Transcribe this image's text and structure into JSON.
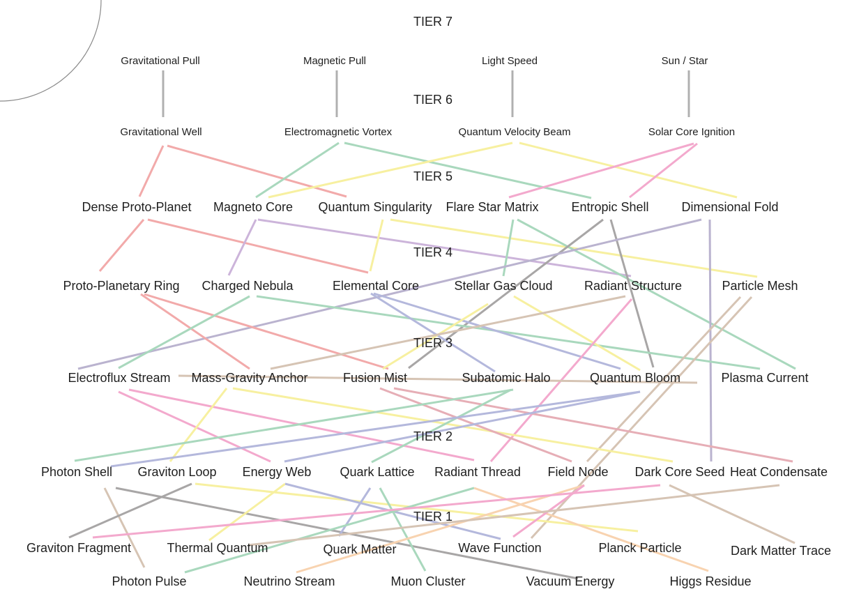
{
  "colors": {
    "gray": "#b0b0b0",
    "red": "#f2aaaa",
    "green": "#a9d8bd",
    "yellow": "#f7f0a0",
    "pink": "#f3a9cd",
    "purple": "#ccb4da",
    "blue": "#b4b8dc",
    "tan": "#d6c4b4",
    "darkgray": "#a8a6a6",
    "orange": "#f8d3b0",
    "rose": "#e6aeb6",
    "lavender": "#bab3cf"
  },
  "tiers": [
    {
      "id": "tier7",
      "label": "TIER 7"
    },
    {
      "id": "tier6",
      "label": "TIER 6"
    },
    {
      "id": "tier5",
      "label": "TIER 5"
    },
    {
      "id": "tier4",
      "label": "TIER 4"
    },
    {
      "id": "tier3",
      "label": "TIER 3"
    },
    {
      "id": "tier2",
      "label": "TIER 2"
    },
    {
      "id": "tier1",
      "label": "TIER 1"
    }
  ],
  "nodes": [
    {
      "id": "grav-pull",
      "label": "Gravitational Pull",
      "size": "small"
    },
    {
      "id": "mag-pull",
      "label": "Magnetic Pull",
      "size": "small"
    },
    {
      "id": "light-speed",
      "label": "Light Speed",
      "size": "small"
    },
    {
      "id": "sun-star",
      "label": "Sun / Star",
      "size": "small"
    },
    {
      "id": "grav-well",
      "label": "Gravitational Well",
      "size": "small"
    },
    {
      "id": "em-vortex",
      "label": "Electromagnetic Vortex",
      "size": "small"
    },
    {
      "id": "qv-beam",
      "label": "Quantum Velocity Beam",
      "size": "small"
    },
    {
      "id": "solar-core",
      "label": "Solar Core Ignition",
      "size": "small"
    },
    {
      "id": "dense-pp",
      "label": "Dense Proto-Planet",
      "size": "big"
    },
    {
      "id": "magneto-core",
      "label": "Magneto Core",
      "size": "big"
    },
    {
      "id": "q-sing",
      "label": "Quantum Singularity",
      "size": "big"
    },
    {
      "id": "flare-star",
      "label": "Flare Star Matrix",
      "size": "big"
    },
    {
      "id": "entropic",
      "label": "Entropic Shell",
      "size": "big"
    },
    {
      "id": "dim-fold",
      "label": "Dimensional Fold",
      "size": "big"
    },
    {
      "id": "pp-ring",
      "label": "Proto-Planetary Ring",
      "size": "big"
    },
    {
      "id": "charged-neb",
      "label": "Charged Nebula",
      "size": "big"
    },
    {
      "id": "elem-core",
      "label": "Elemental Core",
      "size": "big"
    },
    {
      "id": "stellar-gas",
      "label": "Stellar Gas Cloud",
      "size": "big"
    },
    {
      "id": "radiant-struct",
      "label": "Radiant Structure",
      "size": "big"
    },
    {
      "id": "particle-mesh",
      "label": "Particle Mesh",
      "size": "big"
    },
    {
      "id": "electroflux",
      "label": "Electroflux Stream",
      "size": "big"
    },
    {
      "id": "mass-grav",
      "label": "Mass-Gravity Anchor",
      "size": "big"
    },
    {
      "id": "fusion-mist",
      "label": "Fusion Mist",
      "size": "big"
    },
    {
      "id": "subatomic",
      "label": "Subatomic Halo",
      "size": "big"
    },
    {
      "id": "q-bloom",
      "label": "Quantum Bloom",
      "size": "big"
    },
    {
      "id": "plasma",
      "label": "Plasma Current",
      "size": "big"
    },
    {
      "id": "photon-shell",
      "label": "Photon Shell",
      "size": "big"
    },
    {
      "id": "graviton-loop",
      "label": "Graviton Loop",
      "size": "big"
    },
    {
      "id": "energy-web",
      "label": "Energy Web",
      "size": "big"
    },
    {
      "id": "quark-lattice",
      "label": "Quark Lattice",
      "size": "big"
    },
    {
      "id": "radiant-thread",
      "label": "Radiant Thread",
      "size": "big"
    },
    {
      "id": "field-node",
      "label": "Field Node",
      "size": "big"
    },
    {
      "id": "dark-core",
      "label": "Dark Core Seed",
      "size": "big"
    },
    {
      "id": "heat-cond",
      "label": "Heat Condensate",
      "size": "big"
    },
    {
      "id": "graviton-frag",
      "label": "Graviton Fragment",
      "size": "big"
    },
    {
      "id": "thermal-q",
      "label": "Thermal Quantum",
      "size": "big"
    },
    {
      "id": "quark-matter",
      "label": "Quark Matter",
      "size": "big"
    },
    {
      "id": "wave-fn",
      "label": "Wave Function",
      "size": "big"
    },
    {
      "id": "planck",
      "label": "Planck Particle",
      "size": "big"
    },
    {
      "id": "dark-trace",
      "label": "Dark Matter Trace",
      "size": "big"
    },
    {
      "id": "photon-pulse",
      "label": "Photon Pulse",
      "size": "big"
    },
    {
      "id": "neutrino",
      "label": "Neutrino Stream",
      "size": "big"
    },
    {
      "id": "muon",
      "label": "Muon Cluster",
      "size": "big"
    },
    {
      "id": "vacuum",
      "label": "Vacuum Energy",
      "size": "big"
    },
    {
      "id": "higgs",
      "label": "Higgs Residue",
      "size": "big"
    }
  ],
  "edges": [
    {
      "from": "grav-pull",
      "to": "grav-well",
      "color": "gray"
    },
    {
      "from": "mag-pull",
      "to": "em-vortex",
      "color": "gray"
    },
    {
      "from": "light-speed",
      "to": "qv-beam",
      "color": "gray"
    },
    {
      "from": "sun-star",
      "to": "solar-core",
      "color": "gray"
    },
    {
      "from": "grav-well",
      "to": "dense-pp",
      "color": "red"
    },
    {
      "from": "grav-well",
      "to": "q-sing",
      "color": "red"
    },
    {
      "from": "em-vortex",
      "to": "magneto-core",
      "color": "green"
    },
    {
      "from": "em-vortex",
      "to": "entropic",
      "color": "green"
    },
    {
      "from": "qv-beam",
      "to": "magneto-core",
      "color": "yellow"
    },
    {
      "from": "qv-beam",
      "to": "dim-fold",
      "color": "yellow"
    },
    {
      "from": "solar-core",
      "to": "flare-star",
      "color": "pink"
    },
    {
      "from": "solar-core",
      "to": "entropic",
      "color": "pink"
    },
    {
      "from": "dense-pp",
      "to": "pp-ring",
      "color": "red"
    },
    {
      "from": "dense-pp",
      "to": "elem-core",
      "color": "red"
    },
    {
      "from": "magneto-core",
      "to": "charged-neb",
      "color": "purple"
    },
    {
      "from": "magneto-core",
      "to": "radiant-struct",
      "color": "purple"
    },
    {
      "from": "q-sing",
      "to": "elem-core",
      "color": "yellow"
    },
    {
      "from": "q-sing",
      "to": "particle-mesh",
      "color": "yellow"
    },
    {
      "from": "flare-star",
      "to": "stellar-gas",
      "color": "green"
    },
    {
      "from": "flare-star",
      "to": "plasma",
      "color": "green"
    },
    {
      "from": "entropic",
      "to": "fusion-mist",
      "color": "darkgray"
    },
    {
      "from": "entropic",
      "to": "q-bloom",
      "color": "darkgray"
    },
    {
      "from": "dim-fold",
      "to": "electroflux",
      "color": "lavender"
    },
    {
      "from": "dim-fold",
      "to": "dark-core",
      "color": "lavender"
    },
    {
      "from": "pp-ring",
      "to": "mass-grav",
      "color": "red"
    },
    {
      "from": "pp-ring",
      "to": "fusion-mist",
      "color": "red"
    },
    {
      "from": "charged-neb",
      "to": "electroflux",
      "color": "green"
    },
    {
      "from": "charged-neb",
      "to": "plasma",
      "color": "green"
    },
    {
      "from": "elem-core",
      "to": "subatomic",
      "color": "blue"
    },
    {
      "from": "elem-core",
      "to": "q-bloom",
      "color": "blue"
    },
    {
      "from": "stellar-gas",
      "to": "fusion-mist",
      "color": "yellow"
    },
    {
      "from": "stellar-gas",
      "to": "q-bloom",
      "color": "yellow"
    },
    {
      "from": "radiant-struct",
      "to": "mass-grav",
      "color": "tan"
    },
    {
      "from": "radiant-struct",
      "to": "radiant-thread",
      "color": "pink"
    },
    {
      "from": "particle-mesh",
      "to": "field-node",
      "color": "tan"
    },
    {
      "from": "particle-mesh",
      "to": "wave-fn",
      "color": "tan"
    },
    {
      "from": "electroflux",
      "to": "plasma",
      "color": "tan"
    },
    {
      "from": "electroflux",
      "to": "energy-web",
      "color": "pink"
    },
    {
      "from": "mass-grav",
      "to": "radiant-thread",
      "color": "pink"
    },
    {
      "from": "mass-grav",
      "to": "graviton-loop",
      "color": "yellow"
    },
    {
      "from": "mass-grav",
      "to": "dark-core",
      "color": "yellow"
    },
    {
      "from": "fusion-mist",
      "to": "field-node",
      "color": "rose"
    },
    {
      "from": "fusion-mist",
      "to": "heat-cond",
      "color": "rose"
    },
    {
      "from": "subatomic",
      "to": "photon-shell",
      "color": "green"
    },
    {
      "from": "subatomic",
      "to": "quark-lattice",
      "color": "green"
    },
    {
      "from": "q-bloom",
      "to": "photon-shell",
      "color": "blue"
    },
    {
      "from": "q-bloom",
      "to": "energy-web",
      "color": "blue"
    },
    {
      "from": "plasma",
      "to": "heat-cond",
      "color": "tan"
    },
    {
      "from": "photon-shell",
      "to": "photon-pulse",
      "color": "darkgray"
    },
    {
      "from": "photon-shell",
      "to": "vacuum",
      "color": "darkgray"
    },
    {
      "from": "graviton-loop",
      "to": "graviton-frag",
      "color": "yellow"
    },
    {
      "from": "graviton-loop",
      "to": "planck",
      "color": "yellow"
    },
    {
      "from": "energy-web",
      "to": "thermal-q",
      "color": "blue"
    },
    {
      "from": "energy-web",
      "to": "wave-fn",
      "color": "blue"
    },
    {
      "from": "quark-lattice",
      "to": "quark-matter",
      "color": "green"
    },
    {
      "from": "quark-lattice",
      "to": "muon",
      "color": "green"
    },
    {
      "from": "radiant-thread",
      "to": "photon-pulse",
      "color": "orange"
    },
    {
      "from": "radiant-thread",
      "to": "higgs",
      "color": "orange"
    },
    {
      "from": "field-node",
      "to": "neutrino",
      "color": "pink"
    },
    {
      "from": "field-node",
      "to": "wave-fn",
      "color": "pink"
    },
    {
      "from": "dark-core",
      "to": "graviton-frag",
      "color": "tan"
    },
    {
      "from": "dark-core",
      "to": "dark-trace",
      "color": "tan"
    },
    {
      "from": "heat-cond",
      "to": "thermal-q",
      "color": "pink"
    }
  ]
}
